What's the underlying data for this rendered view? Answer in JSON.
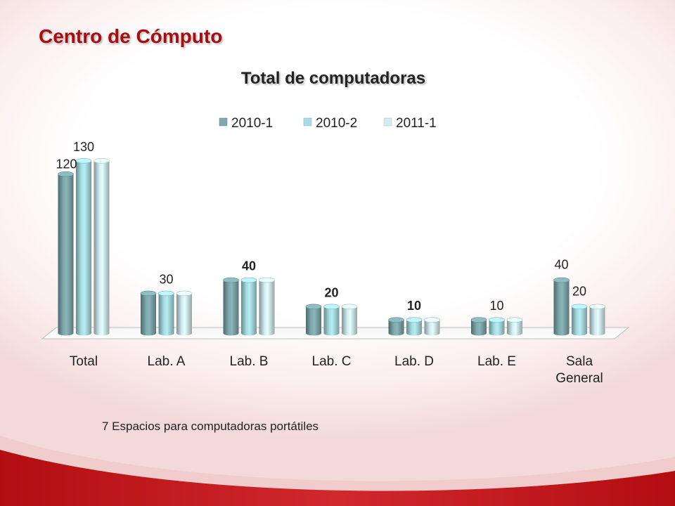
{
  "slide": {
    "title": "Centro de Cómputo",
    "footnote": "7 Espacios para computadoras portátiles"
  },
  "colors": {
    "title": "#a80c10",
    "band_dark": "#b30d12",
    "band_light": "#e8a0a0"
  },
  "chart_data": {
    "type": "bar",
    "title": "Total de computadoras",
    "categories": [
      "Total",
      "Lab. A",
      "Lab. B",
      "Lab. C",
      "Lab. D",
      "Lab. E",
      "Sala General"
    ],
    "series": [
      {
        "name": "2010-1",
        "color": "#7fa9ad",
        "values": [
          120,
          30,
          40,
          20,
          10,
          10,
          40
        ]
      },
      {
        "name": "2010-2",
        "color": "#a8dde3",
        "values": [
          130,
          30,
          40,
          20,
          10,
          10,
          20
        ]
      },
      {
        "name": "2011-1",
        "color": "#d3ecef",
        "values": [
          130,
          30,
          40,
          20,
          10,
          10,
          20
        ]
      }
    ],
    "data_labels": [
      {
        "category": "Total",
        "series": "2010-1",
        "text": "120"
      },
      {
        "category": "Total",
        "series": "2010-2",
        "text": "130"
      },
      {
        "category": "Lab. A",
        "series": "2010-2",
        "text": "30"
      },
      {
        "category": "Lab. B",
        "series": "2010-2",
        "text": "40",
        "bold": true
      },
      {
        "category": "Lab. C",
        "series": "2010-2",
        "text": "20",
        "bold": true
      },
      {
        "category": "Lab. D",
        "series": "2010-2",
        "text": "10",
        "bold": true
      },
      {
        "category": "Lab. E",
        "series": "2010-2",
        "text": "10"
      },
      {
        "category": "Sala General",
        "series": "2010-1",
        "text": "40"
      },
      {
        "category": "Sala General",
        "series": "2010-2",
        "text": "20"
      }
    ],
    "ylim": [
      0,
      140
    ],
    "xlabel": "",
    "ylabel": "",
    "grid": false,
    "legend_position": "top",
    "style": "3d-cylinder"
  }
}
